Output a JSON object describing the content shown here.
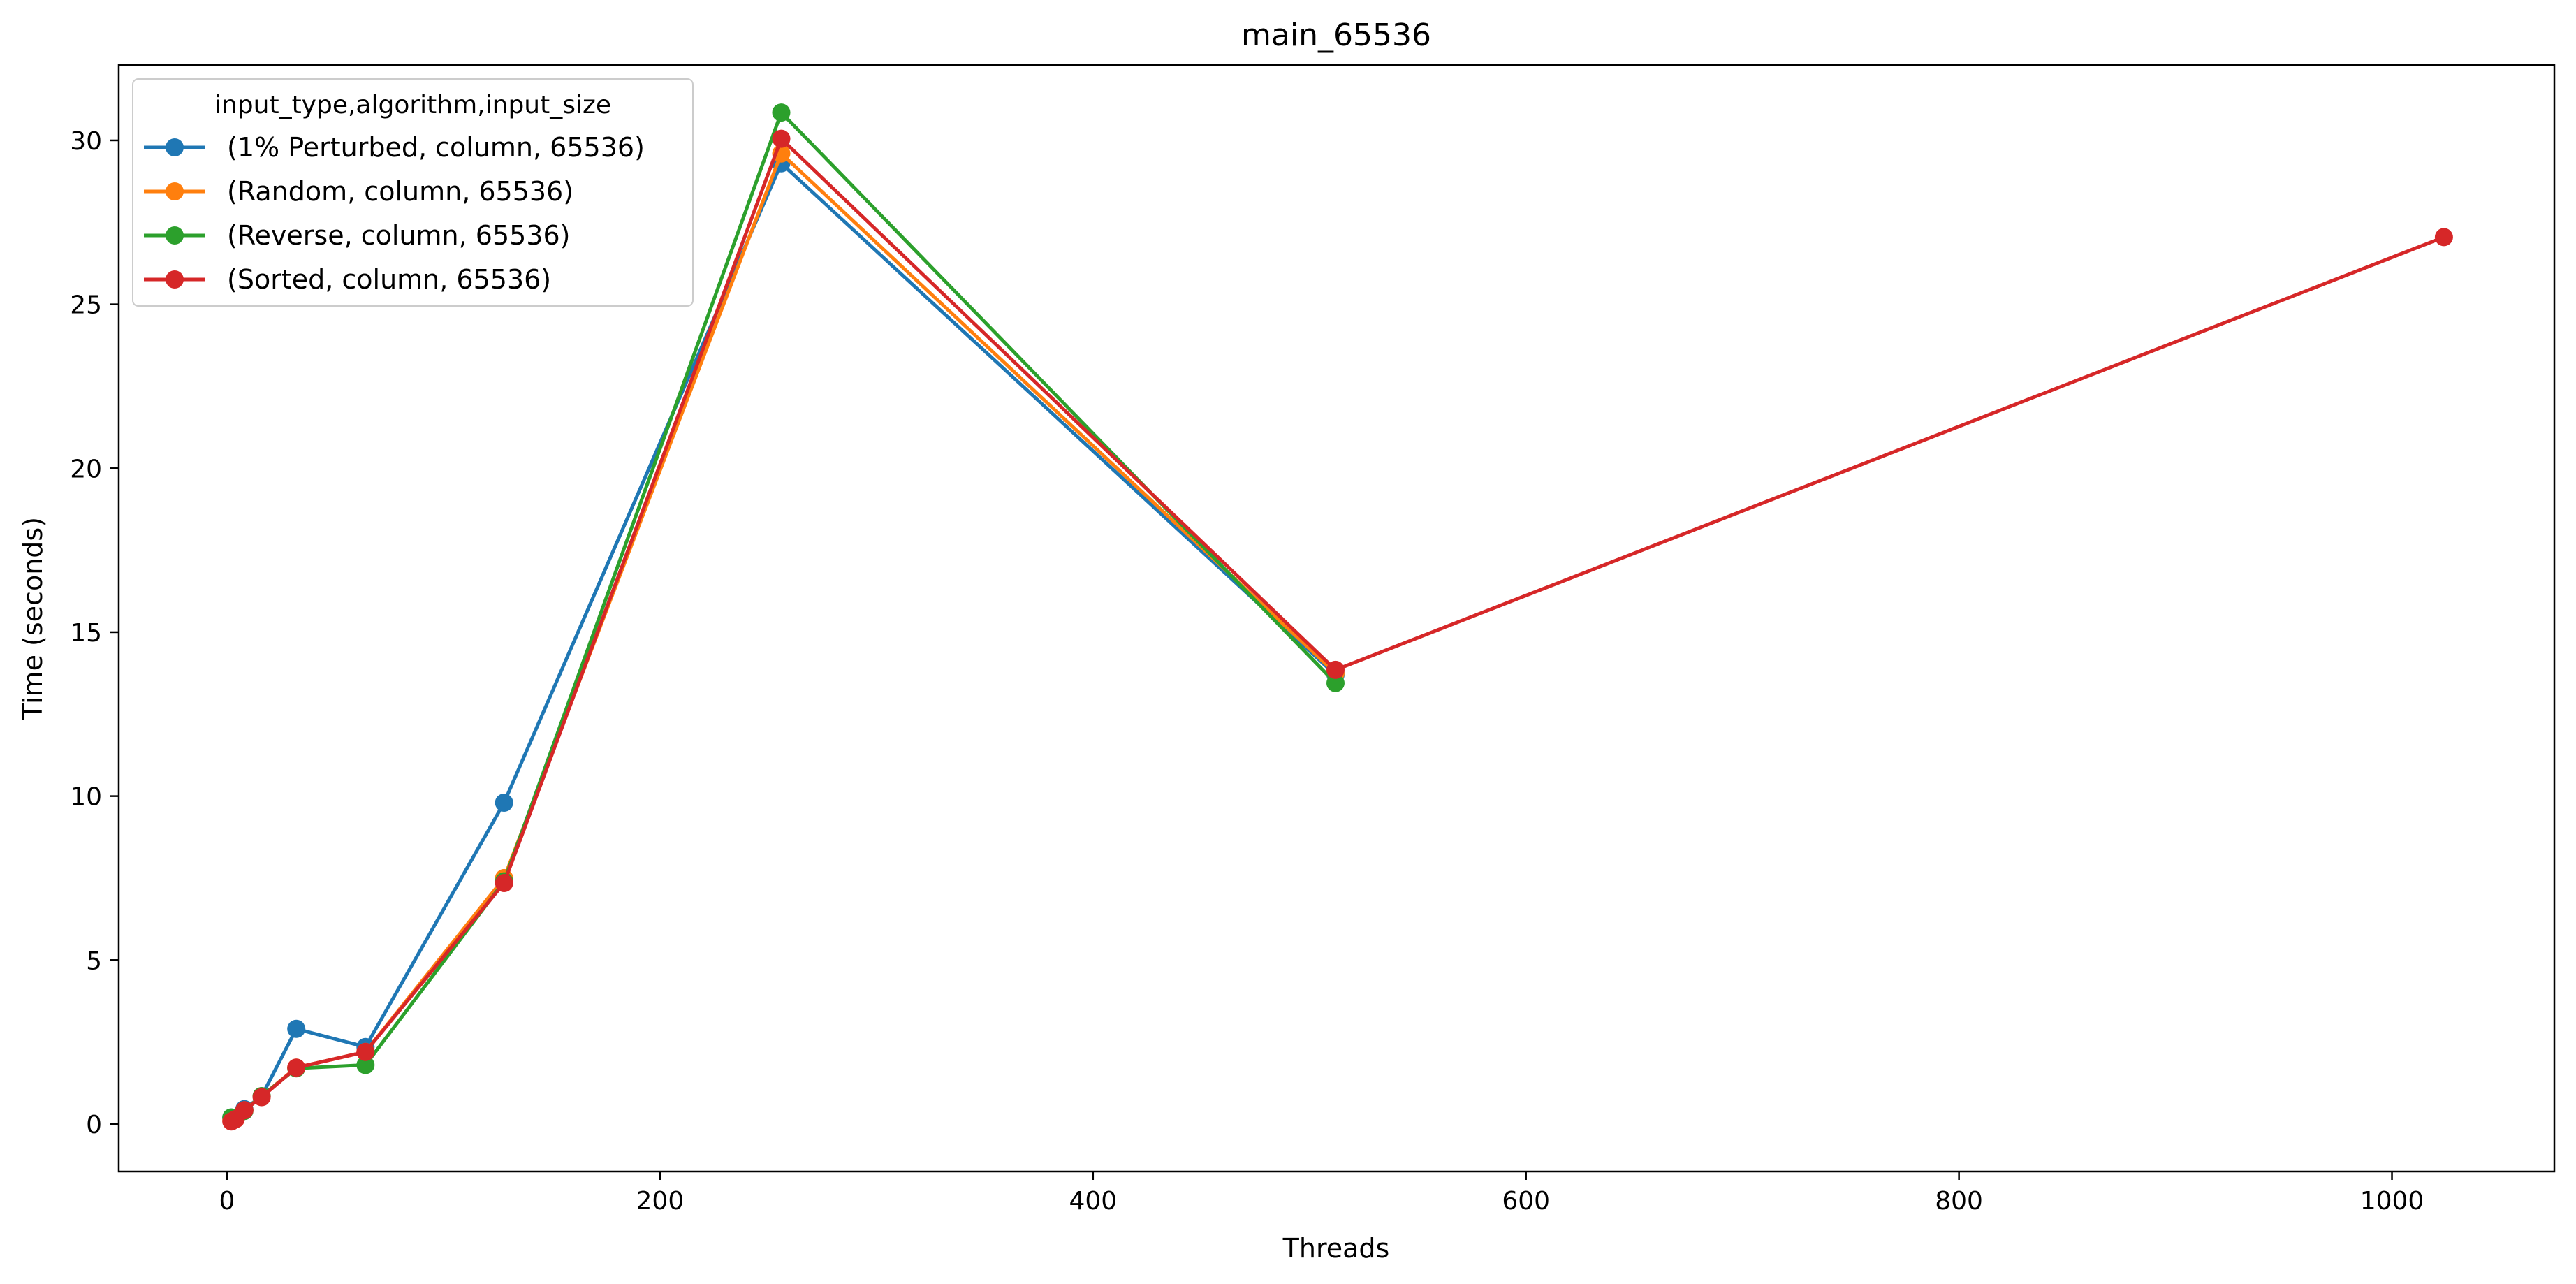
{
  "chart_data": {
    "type": "line",
    "title": "main_65536",
    "xlabel": "Threads",
    "ylabel": "Time (seconds)",
    "xlim": [
      -50,
      1075
    ],
    "ylim": [
      -1.45,
      32.3
    ],
    "xticks": [
      0,
      200,
      400,
      600,
      800,
      1000
    ],
    "yticks": [
      0,
      5,
      10,
      15,
      20,
      25,
      30
    ],
    "grid": false,
    "legend": {
      "title": "input_type,algorithm,input_size",
      "placement": "upper left"
    },
    "series": [
      {
        "name": "(1% Perturbed, column, 65536)",
        "color": "#1f77b4",
        "x": [
          2,
          4,
          8,
          16,
          32,
          64,
          128,
          256,
          512
        ],
        "y": [
          0.2,
          0.17,
          0.45,
          0.85,
          2.9,
          2.35,
          9.8,
          29.3,
          13.7
        ]
      },
      {
        "name": "(Random, column, 65536)",
        "color": "#ff7f0e",
        "x": [
          2,
          4,
          8,
          16,
          32,
          64,
          128,
          256,
          512
        ],
        "y": [
          0.12,
          0.15,
          0.42,
          0.85,
          1.72,
          2.2,
          7.5,
          29.6,
          13.75
        ]
      },
      {
        "name": "(Reverse, column, 65536)",
        "color": "#2ca02c",
        "x": [
          2,
          4,
          8,
          16,
          32,
          64,
          128,
          256,
          512
        ],
        "y": [
          0.2,
          0.18,
          0.4,
          0.85,
          1.7,
          1.8,
          7.4,
          30.85,
          13.45
        ]
      },
      {
        "name": "(Sorted, column, 65536)",
        "color": "#d62728",
        "x": [
          2,
          4,
          8,
          16,
          32,
          64,
          128,
          256,
          512,
          1024
        ],
        "y": [
          0.08,
          0.15,
          0.42,
          0.82,
          1.72,
          2.2,
          7.35,
          30.05,
          13.85,
          27.05
        ]
      }
    ]
  }
}
